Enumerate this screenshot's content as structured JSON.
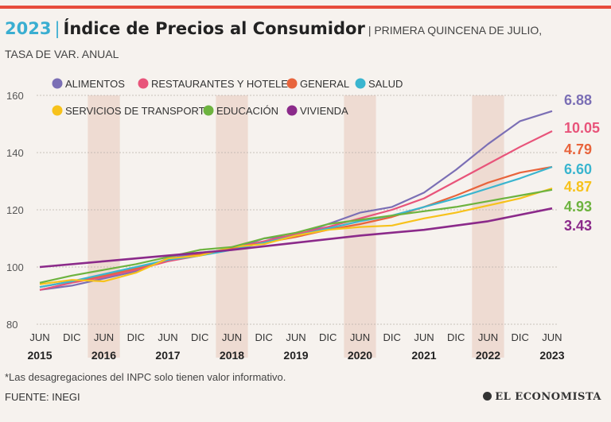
{
  "header": {
    "year": "2023",
    "separator": "|",
    "title": "Índice de Precios al Consumidor",
    "subtitle_line1": "| PRIMERA QUINCENA DE JULIO,",
    "subtitle_line2": "TASA DE VAR. ANUAL"
  },
  "footer": {
    "footnote": "*Las desagregaciones del INPC solo tienen valor informativo.",
    "source": "FUENTE: INEGI",
    "logo": "EL ECONOMISTA"
  },
  "chart_data": {
    "type": "line",
    "ylim": [
      80,
      160
    ],
    "yticks": [
      80,
      100,
      120,
      140,
      160
    ],
    "x_range": [
      2015.45,
      2023.55
    ],
    "x_tick_labels": [
      {
        "x": 2015.45,
        "label": "JUN"
      },
      {
        "x": 2015.95,
        "label": "DIC"
      },
      {
        "x": 2016.45,
        "label": "JUN"
      },
      {
        "x": 2016.95,
        "label": "DIC"
      },
      {
        "x": 2017.45,
        "label": "JUN"
      },
      {
        "x": 2017.95,
        "label": "DIC"
      },
      {
        "x": 2018.45,
        "label": "JUN"
      },
      {
        "x": 2018.95,
        "label": "DIC"
      },
      {
        "x": 2019.45,
        "label": "JUN"
      },
      {
        "x": 2019.95,
        "label": "DIC"
      },
      {
        "x": 2020.45,
        "label": "JUN"
      },
      {
        "x": 2020.95,
        "label": "DIC"
      },
      {
        "x": 2021.45,
        "label": "JUN"
      },
      {
        "x": 2021.95,
        "label": "DIC"
      },
      {
        "x": 2022.45,
        "label": "JUN"
      },
      {
        "x": 2022.95,
        "label": "DIC"
      },
      {
        "x": 2023.45,
        "label": "JUN"
      }
    ],
    "year_labels": [
      {
        "x": 2015.45,
        "label": "2015"
      },
      {
        "x": 2016.45,
        "label": "2016"
      },
      {
        "x": 2017.45,
        "label": "2017"
      },
      {
        "x": 2018.45,
        "label": "2018"
      },
      {
        "x": 2019.45,
        "label": "2019"
      },
      {
        "x": 2020.45,
        "label": "2020"
      },
      {
        "x": 2021.45,
        "label": "2021"
      },
      {
        "x": 2022.45,
        "label": "2022"
      },
      {
        "x": 2023.45,
        "label": "2023"
      }
    ],
    "shaded_bands": [
      [
        2016.2,
        2016.7
      ],
      [
        2018.2,
        2018.7
      ],
      [
        2020.2,
        2020.7
      ],
      [
        2022.2,
        2022.7
      ]
    ],
    "series": [
      {
        "name": "ALIMENTOS",
        "color": "#7b6fb5",
        "end_label": "6.88",
        "points": [
          [
            2015.45,
            92
          ],
          [
            2015.95,
            93.5
          ],
          [
            2016.45,
            96
          ],
          [
            2016.95,
            98.5
          ],
          [
            2017.45,
            103
          ],
          [
            2017.95,
            105
          ],
          [
            2018.45,
            106
          ],
          [
            2018.95,
            110
          ],
          [
            2019.45,
            111
          ],
          [
            2019.95,
            115
          ],
          [
            2020.45,
            119
          ],
          [
            2020.95,
            121
          ],
          [
            2021.45,
            126
          ],
          [
            2021.95,
            134
          ],
          [
            2022.45,
            143
          ],
          [
            2022.95,
            151
          ],
          [
            2023.45,
            154.5
          ]
        ]
      },
      {
        "name": "RESTAURANTES Y HOTELES",
        "color": "#e8547a",
        "end_label": "10.05",
        "points": [
          [
            2015.45,
            92
          ],
          [
            2015.95,
            94.5
          ],
          [
            2016.45,
            96.5
          ],
          [
            2016.95,
            99
          ],
          [
            2017.45,
            102
          ],
          [
            2017.95,
            104
          ],
          [
            2018.45,
            106.5
          ],
          [
            2018.95,
            109
          ],
          [
            2019.45,
            111.5
          ],
          [
            2019.95,
            114
          ],
          [
            2020.45,
            117
          ],
          [
            2020.95,
            120
          ],
          [
            2021.45,
            124
          ],
          [
            2021.95,
            130
          ],
          [
            2022.45,
            136
          ],
          [
            2022.95,
            142
          ],
          [
            2023.45,
            147.5
          ]
        ]
      },
      {
        "name": "GENERAL",
        "color": "#e8643c",
        "end_label": "4.79",
        "points": [
          [
            2015.45,
            93
          ],
          [
            2015.95,
            95
          ],
          [
            2016.45,
            97
          ],
          [
            2016.95,
            99.5
          ],
          [
            2017.45,
            102.5
          ],
          [
            2017.95,
            104.5
          ],
          [
            2018.45,
            106.5
          ],
          [
            2018.95,
            108.5
          ],
          [
            2019.45,
            110.5
          ],
          [
            2019.95,
            113
          ],
          [
            2020.45,
            115
          ],
          [
            2020.95,
            117.5
          ],
          [
            2021.45,
            121
          ],
          [
            2021.95,
            125
          ],
          [
            2022.45,
            129.5
          ],
          [
            2022.95,
            133
          ],
          [
            2023.45,
            135
          ]
        ]
      },
      {
        "name": "SALUD",
        "color": "#3ab5cf",
        "end_label": "6.60",
        "points": [
          [
            2015.45,
            93
          ],
          [
            2015.95,
            95
          ],
          [
            2016.45,
            97.5
          ],
          [
            2016.95,
            100
          ],
          [
            2017.45,
            102.5
          ],
          [
            2017.95,
            104
          ],
          [
            2018.45,
            106
          ],
          [
            2018.95,
            108.5
          ],
          [
            2019.45,
            111
          ],
          [
            2019.95,
            113.5
          ],
          [
            2020.45,
            116
          ],
          [
            2020.95,
            118
          ],
          [
            2021.45,
            121
          ],
          [
            2021.95,
            124
          ],
          [
            2022.45,
            127.5
          ],
          [
            2022.95,
            131
          ],
          [
            2023.45,
            135
          ]
        ]
      },
      {
        "name": "SERVICIOS DE TRANSPORTE",
        "color": "#f7c21b",
        "end_label": "4.87",
        "points": [
          [
            2015.45,
            94
          ],
          [
            2015.95,
            95.5
          ],
          [
            2016.45,
            95
          ],
          [
            2016.95,
            98
          ],
          [
            2017.45,
            103
          ],
          [
            2017.95,
            104
          ],
          [
            2018.45,
            107
          ],
          [
            2018.95,
            108
          ],
          [
            2019.45,
            111
          ],
          [
            2019.95,
            113
          ],
          [
            2020.45,
            114
          ],
          [
            2020.95,
            114.5
          ],
          [
            2021.45,
            117
          ],
          [
            2021.95,
            119
          ],
          [
            2022.45,
            121.5
          ],
          [
            2022.95,
            124
          ],
          [
            2023.45,
            127.5
          ]
        ]
      },
      {
        "name": "EDUCACIÓN",
        "color": "#6db33f",
        "end_label": "4.93",
        "points": [
          [
            2015.45,
            94.5
          ],
          [
            2015.95,
            97
          ],
          [
            2016.45,
            99
          ],
          [
            2016.95,
            101
          ],
          [
            2017.45,
            103.5
          ],
          [
            2017.95,
            106
          ],
          [
            2018.45,
            107
          ],
          [
            2018.95,
            110
          ],
          [
            2019.45,
            112
          ],
          [
            2019.95,
            115
          ],
          [
            2020.45,
            116.5
          ],
          [
            2020.95,
            118
          ],
          [
            2021.45,
            119.5
          ],
          [
            2021.95,
            121
          ],
          [
            2022.45,
            123
          ],
          [
            2022.95,
            125
          ],
          [
            2023.45,
            127
          ]
        ]
      },
      {
        "name": "VIVIENDA",
        "color": "#8b2a8a",
        "end_label": "3.43",
        "points": [
          [
            2015.45,
            100
          ],
          [
            2016.45,
            102
          ],
          [
            2017.45,
            104
          ],
          [
            2018.45,
            106
          ],
          [
            2019.45,
            108.5
          ],
          [
            2020.45,
            111
          ],
          [
            2021.45,
            113
          ],
          [
            2022.45,
            116
          ],
          [
            2023.45,
            120.5
          ]
        ]
      }
    ]
  }
}
